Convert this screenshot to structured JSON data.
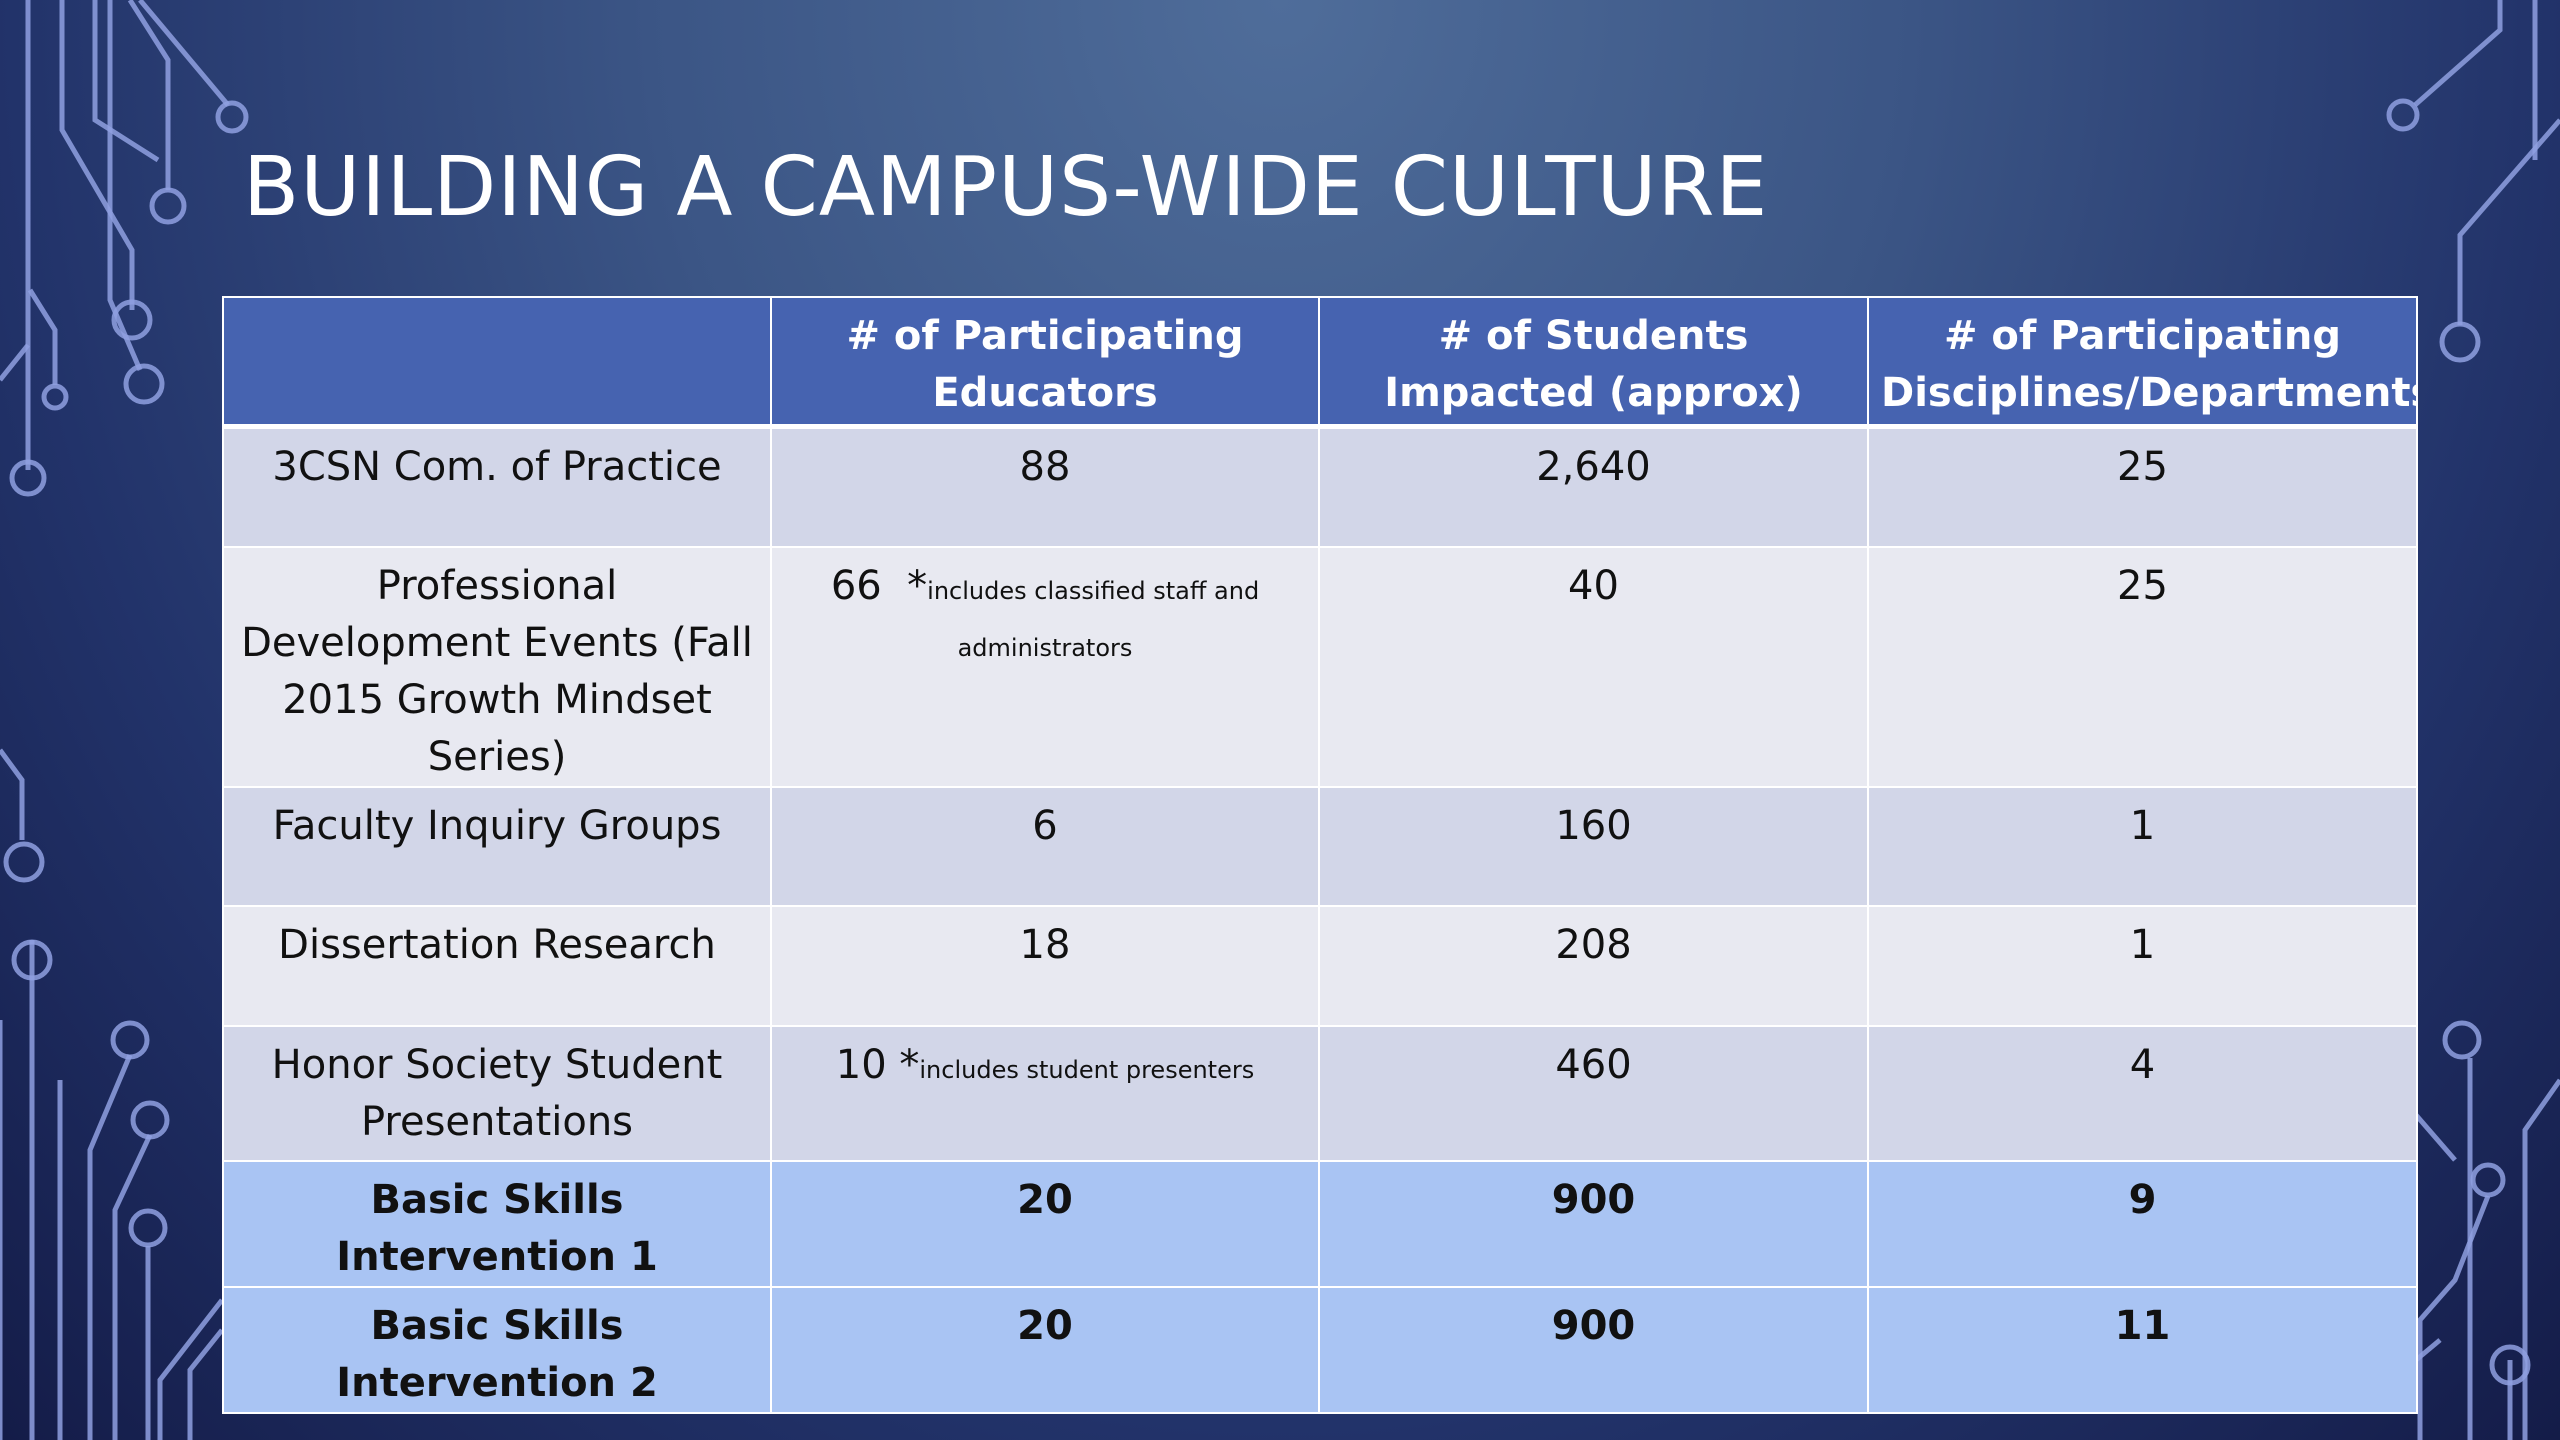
{
  "slide": {
    "title": "Building a Campus-Wide Culture"
  },
  "table": {
    "headers": [
      "",
      "# of Participating Educators",
      "# of Students Impacted (approx)",
      "# of Participating Disciplines/Departments"
    ],
    "rows": [
      {
        "label": "3CSN Com. of Practice",
        "educators": "88",
        "educators_note": "",
        "students": "2,640",
        "departments": "25"
      },
      {
        "label": "Professional Development Events (Fall 2015 Growth Mindset Series)",
        "educators": "66",
        "educators_note": "includes classified staff and administrators",
        "students": "40",
        "departments": "25"
      },
      {
        "label": "Faculty Inquiry Groups",
        "educators": "6",
        "educators_note": "",
        "students": "160",
        "departments": "1"
      },
      {
        "label": "Dissertation Research",
        "educators": "18",
        "educators_note": "",
        "students": "208",
        "departments": "1"
      },
      {
        "label": "Honor Society Student Presentations",
        "educators": "10",
        "educators_note": "includes student presenters",
        "students": "460",
        "departments": "4"
      },
      {
        "label": "Basic Skills Intervention 1",
        "educators": "20",
        "educators_note": "",
        "students": "900",
        "departments": "9"
      },
      {
        "label": "Basic Skills Intervention 2",
        "educators": "20",
        "educators_note": "",
        "students": "900",
        "departments": "11"
      }
    ]
  },
  "colors": {
    "header_bg": "#4663b0",
    "row_odd": "#d2d6e8",
    "row_even": "#e8e9f1",
    "row_highlight": "#a9c4f3",
    "circuit_lines": "#8fa0e0"
  },
  "icons": {
    "decoration": "circuit-board-lines"
  }
}
